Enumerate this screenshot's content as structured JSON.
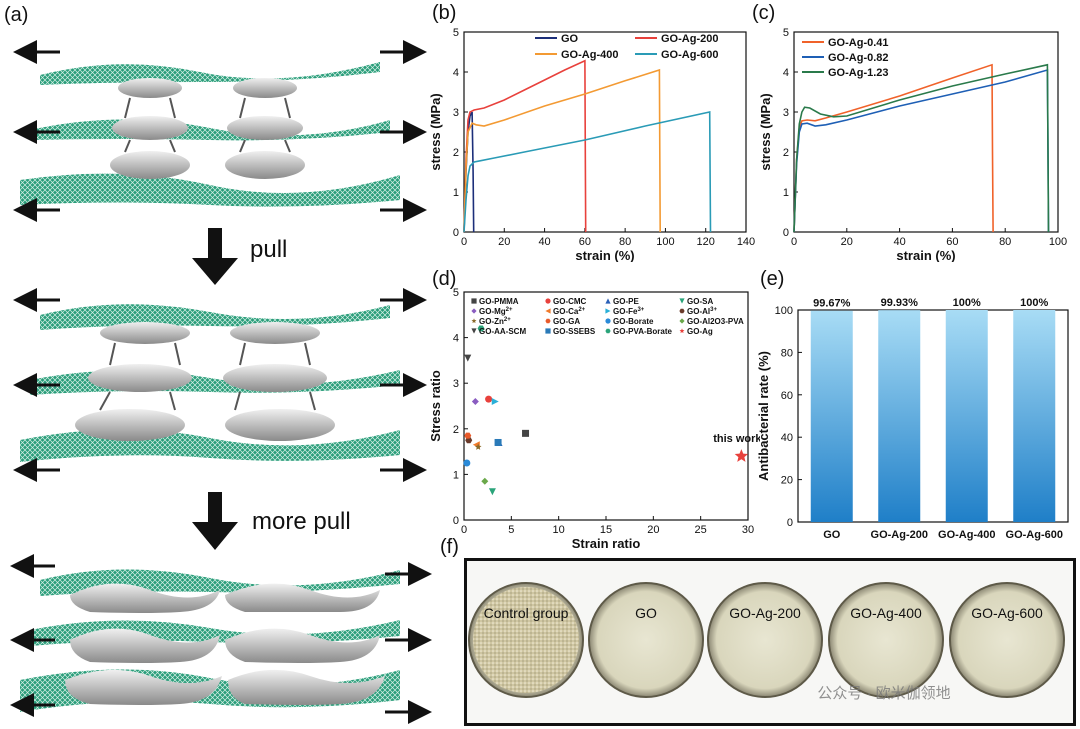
{
  "panel_labels": {
    "a": "(a)",
    "b": "(b)",
    "c": "(c)",
    "d": "(d)",
    "e": "(e)",
    "f": "(f)"
  },
  "schematic": {
    "pull_label": "pull",
    "more_pull_label": "more pull",
    "colors": {
      "sheet": "#2a9d7a",
      "platelet": "#b8b8b8",
      "arrow": "#111111"
    }
  },
  "chart_data": [
    {
      "id": "b",
      "type": "line",
      "xlabel": "strain (%)",
      "ylabel": "stress (MPa)",
      "xlim": [
        0,
        140
      ],
      "ylim": [
        0,
        5
      ],
      "xticks": [
        0,
        20,
        40,
        60,
        80,
        100,
        120,
        140
      ],
      "yticks": [
        0,
        1,
        2,
        3,
        4,
        5
      ],
      "legend": "top-right-2col",
      "series": [
        {
          "name": "GO",
          "color": "#1c2f7a",
          "x": [
            0,
            1,
            2,
            3,
            4,
            4.5,
            4.8
          ],
          "y": [
            0,
            1.5,
            2.5,
            2.9,
            3.0,
            1.5,
            0
          ]
        },
        {
          "name": "GO-Ag-200",
          "color": "#e8413c",
          "x": [
            0,
            1,
            2,
            3,
            5,
            10,
            20,
            30,
            40,
            50,
            60,
            60.2,
            60.4
          ],
          "y": [
            0,
            1.8,
            2.8,
            3.0,
            3.05,
            3.1,
            3.3,
            3.55,
            3.8,
            4.05,
            4.28,
            2.0,
            0
          ]
        },
        {
          "name": "GO-Ag-400",
          "color": "#f39a33",
          "x": [
            0,
            1,
            2,
            4,
            6,
            10,
            20,
            40,
            60,
            80,
            97,
            97.2,
            97.4
          ],
          "y": [
            0,
            1.6,
            2.5,
            2.72,
            2.68,
            2.65,
            2.8,
            3.15,
            3.45,
            3.78,
            4.05,
            2.0,
            0
          ]
        },
        {
          "name": "GO-Ag-600",
          "color": "#2a9bb6",
          "x": [
            0,
            1,
            2,
            3,
            5,
            8,
            15,
            30,
            60,
            90,
            122,
            122.2,
            122.4
          ],
          "y": [
            0,
            0.8,
            1.4,
            1.65,
            1.75,
            1.78,
            1.85,
            2.0,
            2.3,
            2.65,
            3.0,
            1.5,
            0
          ]
        }
      ]
    },
    {
      "id": "c",
      "type": "line",
      "xlabel": "strain (%)",
      "ylabel": "stress (MPa)",
      "xlim": [
        0,
        100
      ],
      "ylim": [
        0,
        5
      ],
      "xticks": [
        0,
        20,
        40,
        60,
        80,
        100
      ],
      "yticks": [
        0,
        1,
        2,
        3,
        4,
        5
      ],
      "legend": "top-left",
      "series": [
        {
          "name": "GO-Ag-0.41",
          "color": "#f0622a",
          "x": [
            0,
            1,
            2,
            3,
            5,
            8,
            12,
            20,
            40,
            60,
            75,
            75.2,
            75.4
          ],
          "y": [
            0,
            1.8,
            2.6,
            2.78,
            2.8,
            2.78,
            2.85,
            3.0,
            3.4,
            3.85,
            4.18,
            2.0,
            0
          ]
        },
        {
          "name": "GO-Ag-0.82",
          "color": "#1e5fb5",
          "x": [
            0,
            1,
            2,
            3,
            5,
            8,
            12,
            20,
            40,
            60,
            80,
            96,
            96.2,
            96.4
          ],
          "y": [
            0,
            1.7,
            2.5,
            2.7,
            2.72,
            2.65,
            2.68,
            2.8,
            3.15,
            3.45,
            3.75,
            4.05,
            2.0,
            0
          ]
        },
        {
          "name": "GO-Ag-1.23",
          "color": "#2a7a4b",
          "x": [
            0,
            1,
            2,
            3,
            4,
            6,
            10,
            15,
            20,
            40,
            60,
            80,
            96,
            96.2,
            96.4
          ],
          "y": [
            0,
            1.8,
            2.7,
            3.0,
            3.12,
            3.1,
            2.95,
            2.88,
            2.9,
            3.3,
            3.65,
            3.95,
            4.18,
            2.0,
            0
          ]
        }
      ]
    },
    {
      "id": "d",
      "type": "scatter",
      "xlabel": "Strain ratio",
      "ylabel": "Stress ratio",
      "xlim": [
        0,
        30
      ],
      "ylim": [
        0,
        5
      ],
      "xticks": [
        0,
        5,
        10,
        15,
        20,
        25,
        30
      ],
      "yticks": [
        0,
        1,
        2,
        3,
        4,
        5
      ],
      "annotation": "this work",
      "series": [
        {
          "name": "GO-PMMA",
          "marker": "square",
          "color": "#444444",
          "x": 6.5,
          "y": 1.9
        },
        {
          "name": "GO-CMC",
          "marker": "circle",
          "color": "#e8413c",
          "x": 2.6,
          "y": 2.65
        },
        {
          "name": "GO-PE",
          "marker": "triangle-up",
          "color": "#2a60b8",
          "x": 3.7,
          "y": 1.7
        },
        {
          "name": "GO-SA",
          "marker": "triangle-down",
          "color": "#2aa47a",
          "x": 3.0,
          "y": 0.62
        },
        {
          "name": "GO-Mg2+",
          "marker": "diamond",
          "color": "#8a5cc0",
          "x": 1.2,
          "y": 2.6
        },
        {
          "name": "GO-Ca2+",
          "marker": "triangle-left",
          "color": "#f07a2a",
          "x": 1.3,
          "y": 1.65
        },
        {
          "name": "GO-Fe3+",
          "marker": "triangle-right",
          "color": "#2ab0d8",
          "x": 3.3,
          "y": 2.6
        },
        {
          "name": "GO-Al3+",
          "marker": "hex",
          "color": "#6a3a2a",
          "x": 0.5,
          "y": 1.75
        },
        {
          "name": "GO-Zn2+",
          "marker": "star",
          "color": "#8a6a2a",
          "x": 1.5,
          "y": 1.6
        },
        {
          "name": "GO-GA",
          "marker": "hex",
          "color": "#e85a2a",
          "x": 0.4,
          "y": 1.85
        },
        {
          "name": "GO-Borate",
          "marker": "circle",
          "color": "#2a8ad8",
          "x": 0.3,
          "y": 1.25
        },
        {
          "name": "GO-Al2O3-PVA",
          "marker": "diamond",
          "color": "#6aa84a",
          "x": 2.2,
          "y": 0.85
        },
        {
          "name": "GO-AA-SCM",
          "marker": "triangle-down",
          "color": "#444444",
          "x": 0.4,
          "y": 3.55
        },
        {
          "name": "GO-SSEBS",
          "marker": "square",
          "color": "#2a7ab8",
          "x": 3.6,
          "y": 1.7
        },
        {
          "name": "GO-PVA-Borate",
          "marker": "hex",
          "color": "#2aa47a",
          "x": 1.8,
          "y": 4.2
        },
        {
          "name": "GO-Ag",
          "marker": "star",
          "color": "#e8413c",
          "x": 29.3,
          "y": 1.4
        }
      ],
      "legend_lines": [
        {
          "a": "GO-PMMA",
          "b": "GO-CMC",
          "c": "GO-PE",
          "d": "GO-SA"
        },
        {
          "a": "GO-Mg",
          "a_sup": "2+",
          "b": "GO-Ca",
          "b_sup": "2+",
          "c": "GO-Fe",
          "c_sup": "3+",
          "d": "GO-Al",
          "d_sup": "3+"
        },
        {
          "a": "GO-Zn",
          "a_sup": "2+",
          "b": "GO-GA",
          "c": "GO-Borate",
          "d": "GO-Al2O3-PVA"
        },
        {
          "a": "GO-AA-SCM",
          "b": "GO-SSEBS",
          "c": "GO-PVA-Borate",
          "d": "GO-Ag"
        }
      ]
    },
    {
      "id": "e",
      "type": "bar",
      "ylabel": "Antibacterial rate (%)",
      "categories": [
        "GO",
        "GO-Ag-200",
        "GO-Ag-400",
        "GO-Ag-600"
      ],
      "values": [
        99.67,
        99.93,
        100,
        100
      ],
      "value_labels": [
        "99.67%",
        "99.93%",
        "100%",
        "100%"
      ],
      "ylim": [
        0,
        100
      ],
      "yticks": [
        0,
        20,
        40,
        60,
        80,
        100
      ],
      "bar_color_top": "#a8dcf5",
      "bar_color_bottom": "#1f7fc8"
    }
  ],
  "petri": {
    "dishes": [
      {
        "label": "Control group"
      },
      {
        "label": "GO"
      },
      {
        "label": "GO-Ag-200"
      },
      {
        "label": "GO-Ag-400"
      },
      {
        "label": "GO-Ag-600"
      }
    ],
    "watermark": "公众号 · 欧米伽领地"
  }
}
